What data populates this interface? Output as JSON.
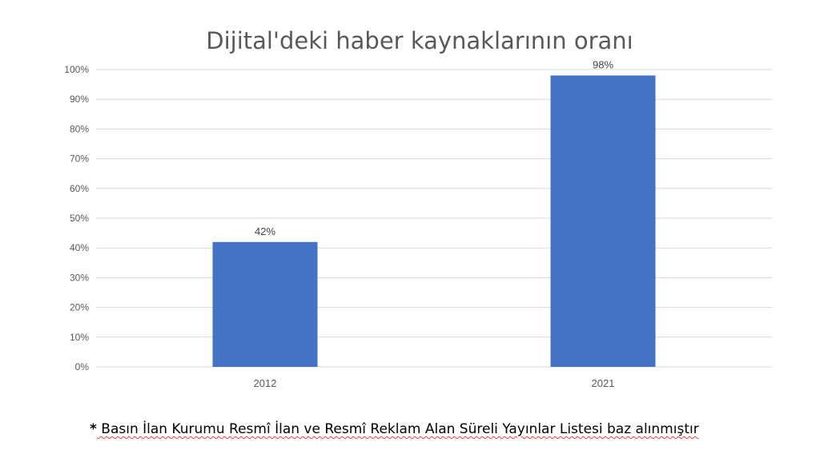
{
  "chart_data": {
    "type": "bar",
    "title": "Dijital'deki haber kaynaklarının oranı",
    "categories": [
      "2012",
      "2021"
    ],
    "values": [
      42,
      98
    ],
    "data_labels": [
      "42%",
      "98%"
    ],
    "y_ticks": [
      "0%",
      "10%",
      "20%",
      "30%",
      "40%",
      "50%",
      "60%",
      "70%",
      "80%",
      "90%",
      "100%"
    ],
    "ylim": [
      0,
      100
    ],
    "grid": true,
    "bar_color": "#4472C4",
    "grid_color": "#D9D9D9"
  },
  "footnote": {
    "star": "*",
    "text": " Basın İlan Kurumu Resmî İlan ve Resmî Reklam Alan Süreli Yayınlar Listesi baz alınmıştır"
  }
}
